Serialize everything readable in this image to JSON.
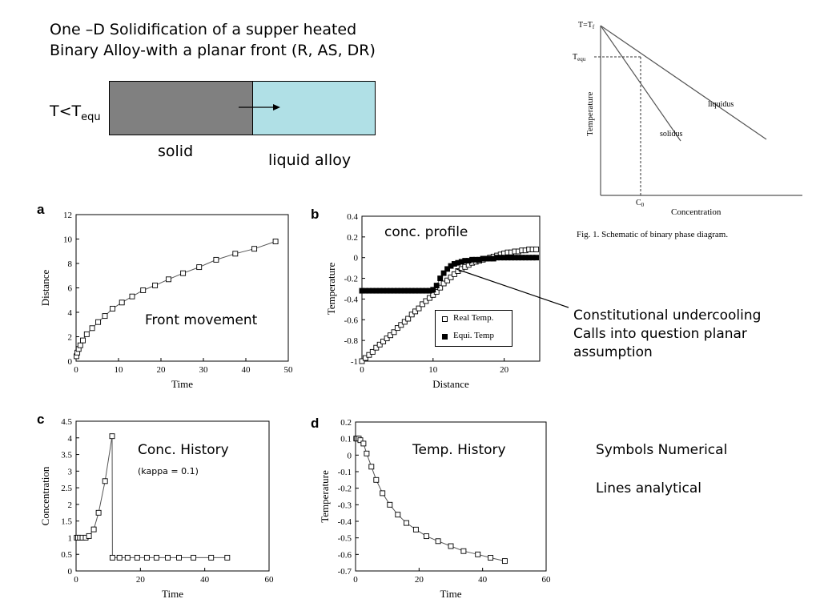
{
  "header": {
    "title_line1": "One –D Solidification of a supper heated",
    "title_line2": "Binary Alloy-with a planar front   (R, AS, DR)"
  },
  "schematic": {
    "temp_label_main": "T<T",
    "temp_label_sub": "equ",
    "solid_label": "solid",
    "liquid_label": "liquid alloy",
    "colors": {
      "solid": "#808080",
      "liquid": "#b0e0e6"
    }
  },
  "phase_diagram": {
    "top_label_main": "T=T",
    "top_label_sub": "f",
    "equ_label_main": "T",
    "equ_label_sub": "equ",
    "c0_label_main": "C",
    "c0_label_sub": "0",
    "ylabel": "Temperature",
    "xlabel": "Concentration",
    "liquidus_label": "liquidus",
    "solidus_label": "solidus",
    "caption": "Fig. 1.  Schematic of binary phase diagram."
  },
  "annotations": {
    "undercooling_line1": "Constitutional undercooling",
    "undercooling_line2": "Calls into question planar",
    "undercooling_line3": "assumption",
    "symbols_note": "Symbols Numerical",
    "lines_note": "Lines analytical"
  },
  "chart_data": [
    {
      "panel": "a",
      "type": "line",
      "xlabel": "Time",
      "ylabel": "Distance",
      "inset_label": "Front movement",
      "xlim": [
        0,
        50
      ],
      "ylim": [
        0,
        12
      ],
      "xticks": [
        0,
        10,
        20,
        30,
        40,
        50
      ],
      "yticks": [
        0,
        2,
        4,
        6,
        8,
        10,
        12
      ],
      "series": [
        {
          "marker": "open-square",
          "x": [
            0.1,
            0.3,
            0.6,
            1.0,
            1.6,
            2.5,
            3.8,
            5.2,
            6.8,
            8.6,
            10.8,
            13.2,
            15.8,
            18.6,
            21.8,
            25.2,
            29.0,
            33.0,
            37.5,
            42.0,
            47.0
          ],
          "y": [
            0.4,
            0.7,
            1.0,
            1.3,
            1.7,
            2.2,
            2.7,
            3.2,
            3.7,
            4.3,
            4.8,
            5.3,
            5.8,
            6.2,
            6.7,
            7.2,
            7.7,
            8.3,
            8.8,
            9.2,
            9.8
          ]
        }
      ]
    },
    {
      "panel": "b",
      "type": "line",
      "xlabel": "Distance",
      "ylabel": "Temperature",
      "inset_label": "conc. profile",
      "xlim": [
        0,
        25
      ],
      "ylim": [
        -1,
        0.4
      ],
      "xticks": [
        0,
        10,
        20
      ],
      "yticks": [
        -1,
        -0.8,
        -0.6,
        -0.4,
        -0.2,
        0,
        0.2,
        0.4
      ],
      "legend_position": "bottom-right",
      "series": [
        {
          "name": "Real Temp.",
          "marker": "open-square",
          "x": [
            0.0,
            0.5,
            1.0,
            1.5,
            2.0,
            2.5,
            3.0,
            3.5,
            4.0,
            4.5,
            5.0,
            5.5,
            6.0,
            6.5,
            7.0,
            7.5,
            8.0,
            8.5,
            9.0,
            9.5,
            10.0,
            10.5,
            11.0,
            11.5,
            12.0,
            12.5,
            13.0,
            13.5,
            14.0,
            14.5,
            15.0,
            15.5,
            16.0,
            16.5,
            17.0,
            17.5,
            18.0,
            18.5,
            19.0,
            19.5,
            20.0,
            20.5,
            21.0,
            21.5,
            22.0,
            22.5,
            23.0,
            23.5,
            24.0,
            24.5
          ],
          "y": [
            -1.0,
            -0.97,
            -0.94,
            -0.91,
            -0.87,
            -0.84,
            -0.81,
            -0.78,
            -0.75,
            -0.72,
            -0.68,
            -0.65,
            -0.62,
            -0.59,
            -0.55,
            -0.52,
            -0.49,
            -0.45,
            -0.42,
            -0.39,
            -0.36,
            -0.33,
            -0.29,
            -0.25,
            -0.22,
            -0.19,
            -0.16,
            -0.13,
            -0.11,
            -0.09,
            -0.07,
            -0.05,
            -0.04,
            -0.03,
            -0.02,
            -0.01,
            0.0,
            0.01,
            0.02,
            0.03,
            0.04,
            0.05,
            0.05,
            0.06,
            0.06,
            0.07,
            0.07,
            0.08,
            0.08,
            0.08
          ]
        },
        {
          "name": "Equi. Temp",
          "marker": "filled-square",
          "x": [
            0.0,
            0.5,
            1.0,
            1.5,
            2.0,
            2.5,
            3.0,
            3.5,
            4.0,
            4.5,
            5.0,
            5.5,
            6.0,
            6.5,
            7.0,
            7.5,
            8.0,
            8.5,
            9.0,
            9.5,
            10.0,
            10.5,
            11.0,
            11.5,
            12.0,
            12.5,
            13.0,
            13.5,
            14.0,
            14.5,
            15.0,
            15.5,
            16.0,
            16.5,
            17.0,
            17.5,
            18.0,
            18.5,
            19.0,
            19.5,
            20.0,
            20.5,
            21.0,
            21.5,
            22.0,
            22.5,
            23.0,
            23.5,
            24.0,
            24.5
          ],
          "y": [
            -0.32,
            -0.32,
            -0.32,
            -0.32,
            -0.32,
            -0.32,
            -0.32,
            -0.32,
            -0.32,
            -0.32,
            -0.32,
            -0.32,
            -0.32,
            -0.32,
            -0.32,
            -0.32,
            -0.32,
            -0.32,
            -0.32,
            -0.32,
            -0.31,
            -0.27,
            -0.2,
            -0.15,
            -0.11,
            -0.08,
            -0.06,
            -0.05,
            -0.04,
            -0.03,
            -0.03,
            -0.02,
            -0.02,
            -0.02,
            -0.01,
            -0.01,
            -0.01,
            -0.01,
            0.0,
            0.0,
            0.0,
            0.0,
            0.0,
            0.0,
            0.0,
            0.0,
            0.0,
            0.0,
            0.0,
            0.0
          ]
        }
      ]
    },
    {
      "panel": "c",
      "type": "line",
      "xlabel": "Time",
      "ylabel": "Concentration",
      "inset_label": "Conc. History",
      "inset_sublabel": "(kappa = 0.1)",
      "xlim": [
        0,
        60
      ],
      "ylim": [
        0,
        4.5
      ],
      "xticks": [
        0,
        20,
        40,
        60
      ],
      "yticks": [
        0,
        0.5,
        1,
        1.5,
        2,
        2.5,
        3,
        3.5,
        4,
        4.5
      ],
      "series": [
        {
          "marker": "open-square",
          "x": [
            0.2,
            0.6,
            1.2,
            2.0,
            3.0,
            4.0,
            5.5,
            7.0,
            9.0,
            11.2,
            11.3,
            13.5,
            16.0,
            19.0,
            22.0,
            25.0,
            28.5,
            32.0,
            36.5,
            42.0,
            47.0
          ],
          "y": [
            1.0,
            1.0,
            1.0,
            1.0,
            1.0,
            1.05,
            1.25,
            1.75,
            2.7,
            4.05,
            0.4,
            0.4,
            0.4,
            0.4,
            0.4,
            0.4,
            0.4,
            0.4,
            0.4,
            0.4,
            0.4
          ]
        }
      ]
    },
    {
      "panel": "d",
      "type": "line",
      "xlabel": "Time",
      "ylabel": "Temperature",
      "inset_label": "Temp. History",
      "xlim": [
        0,
        60
      ],
      "ylim": [
        -0.7,
        0.2
      ],
      "xticks": [
        0,
        20,
        40,
        60
      ],
      "yticks": [
        -0.7,
        -0.6,
        -0.5,
        -0.4,
        -0.3,
        -0.2,
        -0.1,
        0,
        0.1,
        0.2
      ],
      "series": [
        {
          "marker": "open-square",
          "x": [
            0.2,
            0.5,
            1.0,
            1.5,
            2.5,
            3.5,
            5.0,
            6.5,
            8.5,
            10.8,
            13.3,
            16.0,
            19.0,
            22.3,
            26.0,
            30.0,
            34.0,
            38.5,
            42.5,
            47.0
          ],
          "y": [
            0.1,
            0.1,
            0.1,
            0.09,
            0.07,
            0.01,
            -0.07,
            -0.15,
            -0.23,
            -0.3,
            -0.36,
            -0.41,
            -0.45,
            -0.49,
            -0.52,
            -0.55,
            -0.58,
            -0.6,
            -0.62,
            -0.64
          ]
        }
      ]
    }
  ]
}
